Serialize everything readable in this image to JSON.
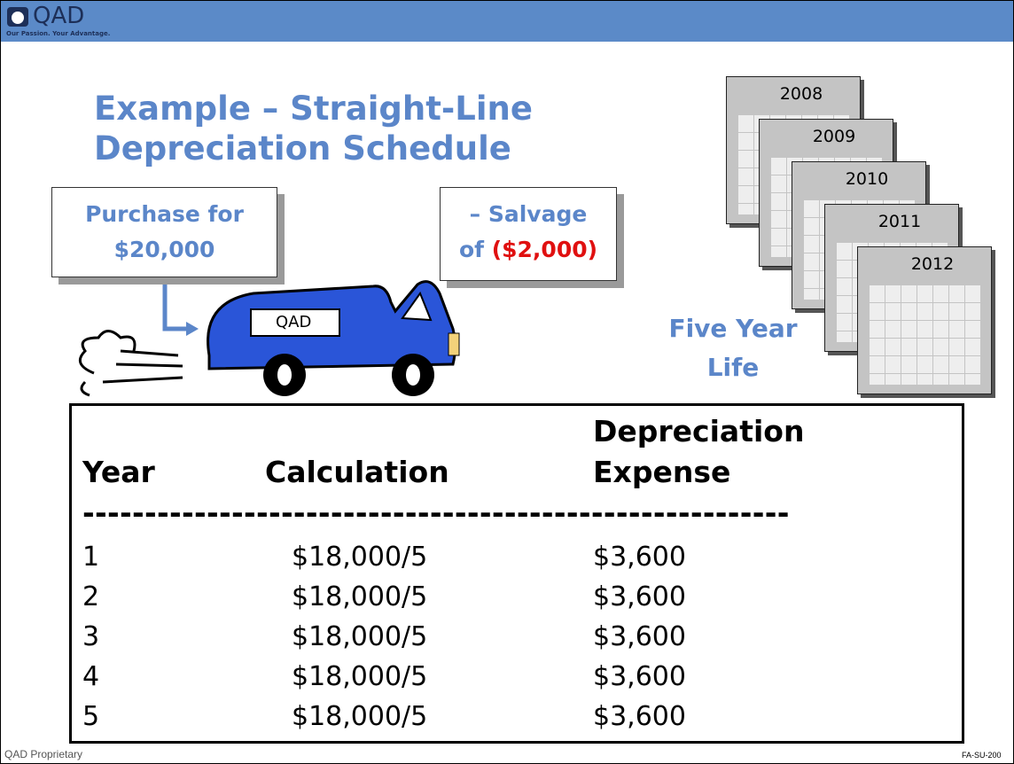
{
  "header": {
    "logo": "QAD",
    "tagline": "Our Passion. Your Advantage."
  },
  "title": {
    "line1": "Example – Straight-Line",
    "line2": "Depreciation Schedule"
  },
  "purchase": {
    "line1": "Purchase for",
    "line2": "$20,000"
  },
  "salvage": {
    "line1": "– Salvage",
    "line2_prefix": "of",
    "line2_amount": "($2,000)"
  },
  "truck_label": "QAD",
  "calendars": [
    "2008",
    "2009",
    "2010",
    "2011",
    "2012"
  ],
  "life": {
    "line1": "Five Year",
    "line2": "Life"
  },
  "table": {
    "headers": {
      "year": "Year",
      "calculation": "Calculation",
      "expense_line1": "Depreciation",
      "expense_line2": "Expense"
    },
    "separator": "---------------------------------------------------------",
    "rows": [
      [
        "1",
        "$18,000/5",
        "$3,600"
      ],
      [
        "2",
        "$18,000/5",
        "$3,600"
      ],
      [
        "3",
        "$18,000/5",
        "$3,600"
      ],
      [
        "4",
        "$18,000/5",
        "$3,600"
      ],
      [
        "5",
        "$18,000/5",
        "$3,600"
      ]
    ]
  },
  "footer": {
    "left": "QAD Proprietary",
    "right": "FA-SU-200"
  }
}
